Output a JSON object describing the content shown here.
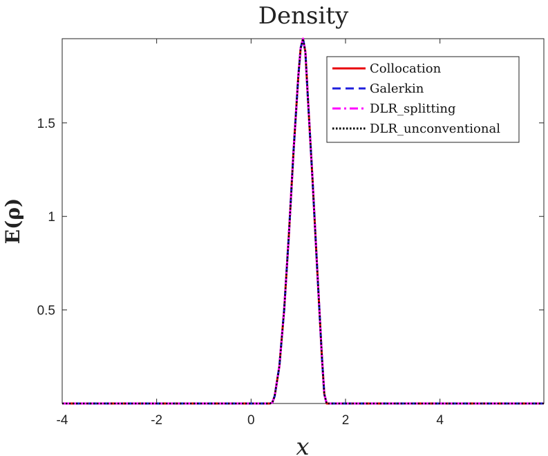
{
  "chart_data": {
    "type": "line",
    "title": "Density",
    "xlabel": "x",
    "ylabel": "E(ρ)",
    "xlim": [
      -4,
      6.2
    ],
    "ylim": [
      0,
      1.95
    ],
    "xticks": [
      -4,
      -2,
      0,
      2,
      4
    ],
    "xtick_labels": [
      "-4",
      "-2",
      "0",
      "2",
      "4"
    ],
    "yticks": [
      0.5,
      1,
      1.5
    ],
    "ytick_labels": [
      "0.5",
      "1",
      "1.5"
    ],
    "grid": false,
    "legend_position": "top-right",
    "x": [
      -4,
      -2,
      0,
      0.4,
      0.45,
      0.5,
      0.6,
      0.7,
      0.8,
      0.9,
      1.0,
      1.05,
      1.1,
      1.15,
      1.2,
      1.3,
      1.4,
      1.5,
      1.55,
      1.6,
      2,
      4,
      6.2
    ],
    "series": [
      {
        "name": "Collocation",
        "color": "#e8000b",
        "dash": "solid",
        "values": [
          0,
          0,
          0,
          0,
          0.005,
          0.04,
          0.2,
          0.5,
          0.9,
          1.35,
          1.75,
          1.9,
          1.95,
          1.88,
          1.65,
          1.2,
          0.72,
          0.25,
          0.05,
          0,
          0,
          0,
          0
        ]
      },
      {
        "name": "Galerkin",
        "color": "#1f1fdd",
        "dash": "dashed",
        "values": [
          0,
          0,
          0,
          0,
          0.005,
          0.04,
          0.2,
          0.5,
          0.9,
          1.35,
          1.75,
          1.9,
          1.95,
          1.88,
          1.65,
          1.2,
          0.72,
          0.25,
          0.05,
          0,
          0,
          0,
          0
        ]
      },
      {
        "name": "DLR_splitting",
        "color": "#ff00ff",
        "dash": "dashdot",
        "values": [
          0,
          0,
          0,
          0,
          0.005,
          0.04,
          0.2,
          0.5,
          0.9,
          1.35,
          1.75,
          1.9,
          1.95,
          1.88,
          1.65,
          1.2,
          0.72,
          0.25,
          0.05,
          0,
          0,
          0,
          0
        ]
      },
      {
        "name": "DLR_unconventional",
        "color": "#000000",
        "dash": "dotted",
        "values": [
          0,
          0,
          0,
          0,
          0.005,
          0.04,
          0.2,
          0.5,
          0.9,
          1.35,
          1.75,
          1.9,
          1.95,
          1.88,
          1.65,
          1.2,
          0.72,
          0.25,
          0.05,
          0,
          0,
          0,
          0
        ]
      }
    ],
    "legend_labels": [
      "Collocation",
      "Galerkin",
      "DLR_splitting",
      "DLR_unconventional"
    ]
  }
}
